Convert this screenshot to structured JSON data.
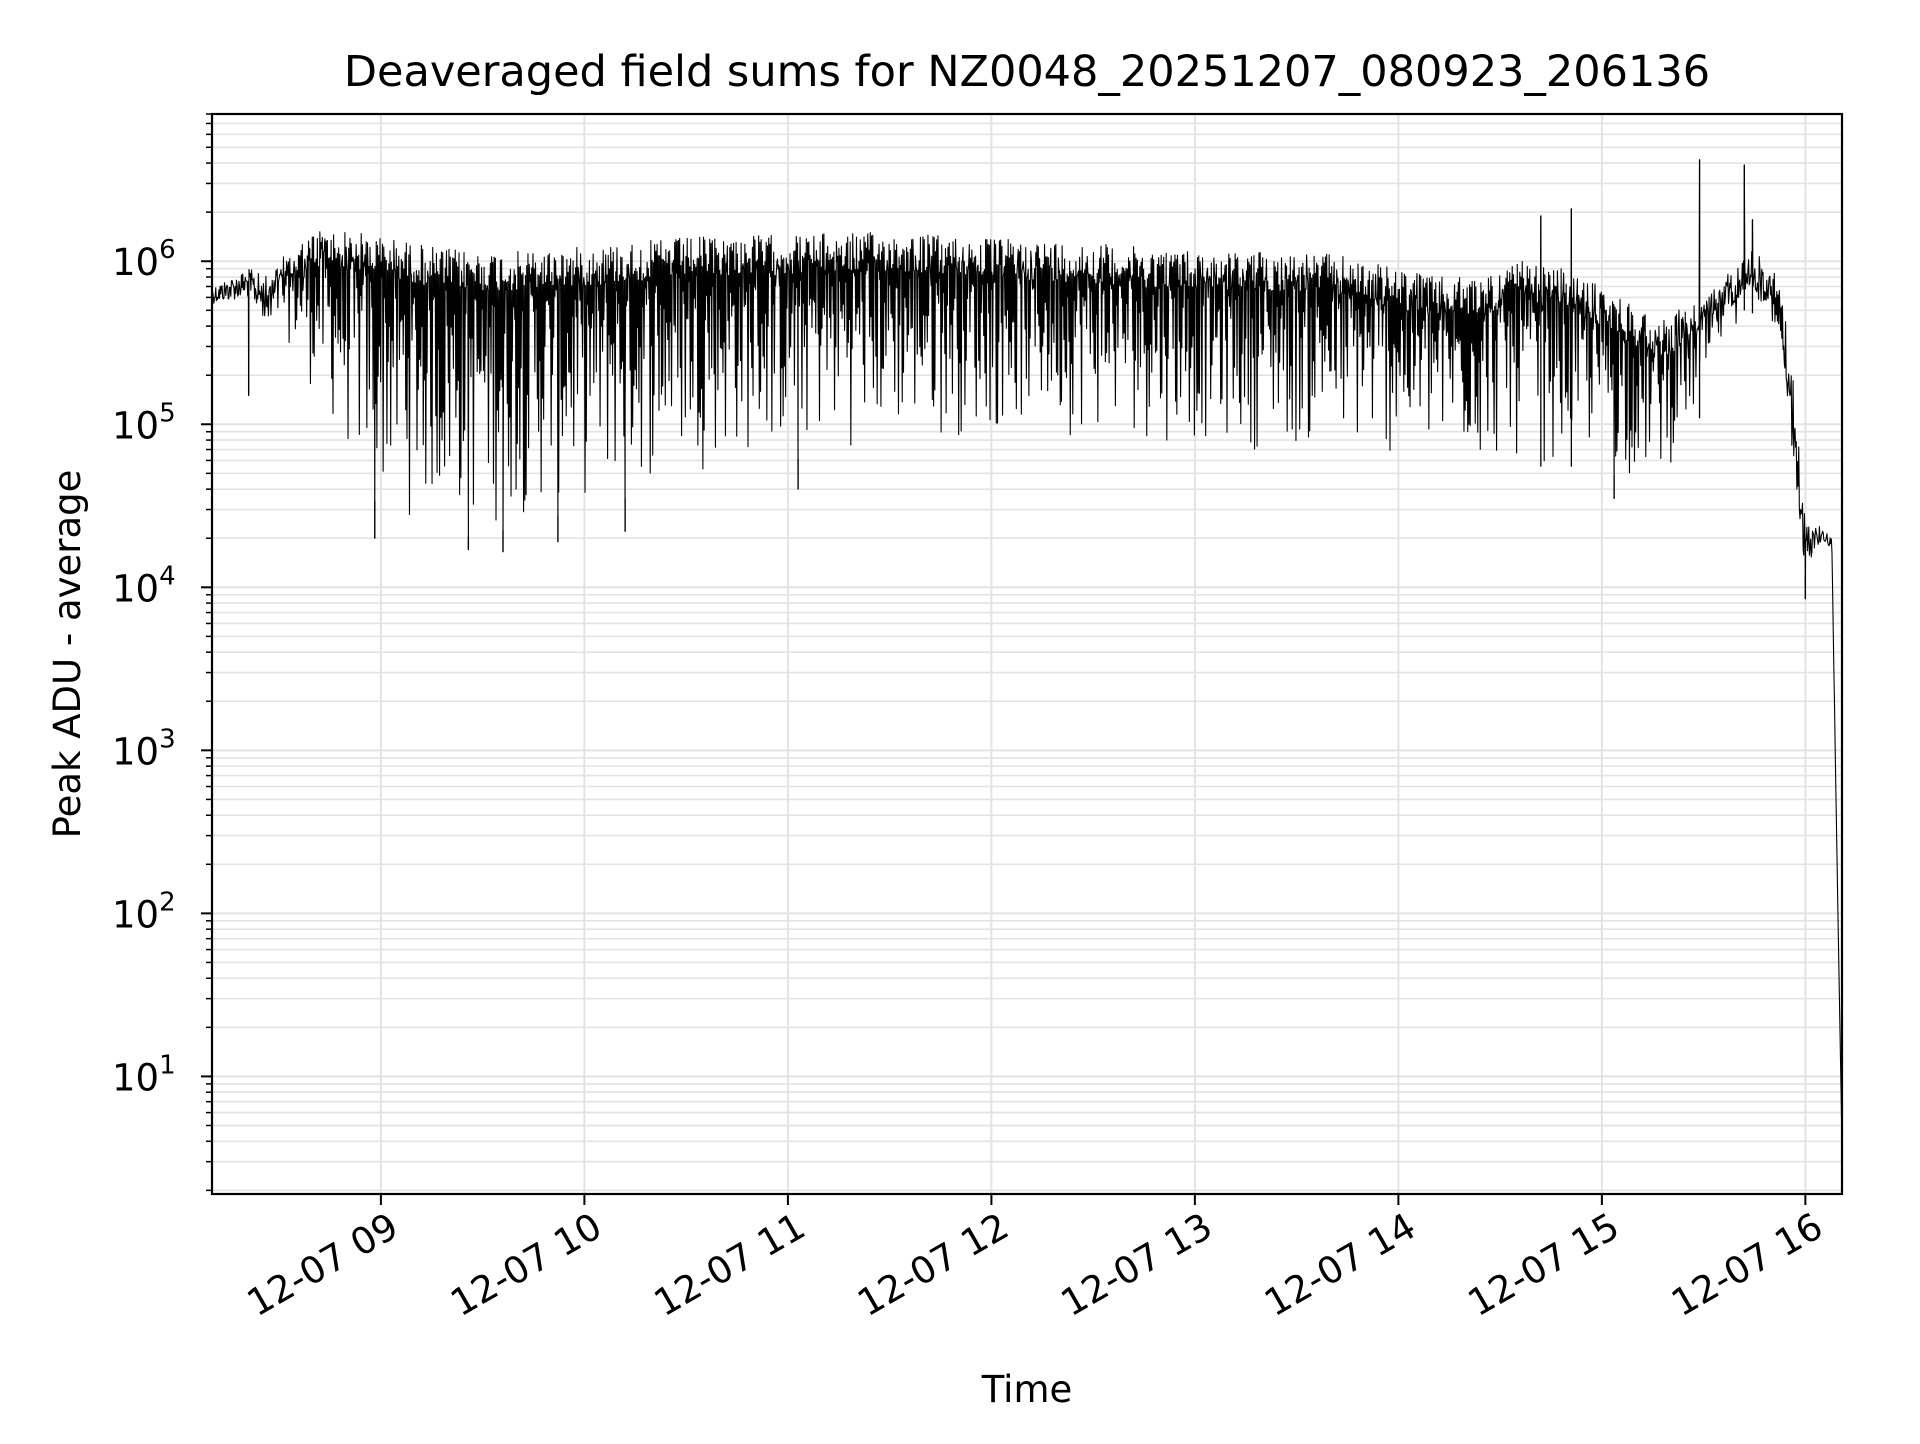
{
  "chart_data": {
    "type": "line",
    "title": "Deaveraged field sums for NZ0048_20251207_080923_206136",
    "xlabel": "Time",
    "ylabel": "Peak ADU - average",
    "yscale": "log",
    "ylim": [
      1.9,
      8000000
    ],
    "xlim_hours": [
      8.17,
      16.18
    ],
    "grid": true,
    "line_color": "#000000",
    "grid_color": "#e3e3e3",
    "x_ticks": [
      {
        "hour": 9,
        "label": "12-07 09"
      },
      {
        "hour": 10,
        "label": "12-07 10"
      },
      {
        "hour": 11,
        "label": "12-07 11"
      },
      {
        "hour": 12,
        "label": "12-07 12"
      },
      {
        "hour": 13,
        "label": "12-07 13"
      },
      {
        "hour": 14,
        "label": "12-07 14"
      },
      {
        "hour": 15,
        "label": "12-07 15"
      },
      {
        "hour": 16,
        "label": "12-07 16"
      }
    ],
    "y_ticks": [
      {
        "value": 10,
        "base": "10",
        "exp": "1"
      },
      {
        "value": 100,
        "base": "10",
        "exp": "2"
      },
      {
        "value": 1000,
        "base": "10",
        "exp": "3"
      },
      {
        "value": 10000,
        "base": "10",
        "exp": "4"
      },
      {
        "value": 100000,
        "base": "10",
        "exp": "5"
      },
      {
        "value": 1000000,
        "base": "10",
        "exp": "6"
      }
    ],
    "envelope_hours": [
      8.17,
      8.35,
      8.45,
      8.55,
      8.7,
      8.9,
      9.1,
      9.3,
      9.5,
      9.7,
      9.9,
      10.2,
      10.5,
      10.8,
      11.0,
      11.3,
      11.6,
      11.9,
      12.2,
      12.5,
      12.8,
      13.1,
      13.4,
      13.7,
      14.0,
      14.2,
      14.4,
      14.6,
      14.8,
      15.0,
      15.1,
      15.2,
      15.3,
      15.5,
      15.6,
      15.7,
      15.8,
      15.85,
      15.9,
      15.95,
      16.0,
      16.05,
      16.1,
      16.13,
      16.16,
      16.18
    ],
    "envelope_upper": [
      700000,
      900000,
      800000,
      1200000,
      1600000,
      1500000,
      1350000,
      1200000,
      1150000,
      1150000,
      1200000,
      1300000,
      1400000,
      1450000,
      1450000,
      1500000,
      1500000,
      1400000,
      1350000,
      1300000,
      1200000,
      1150000,
      1150000,
      1100000,
      900000,
      800000,
      800000,
      1000000,
      900000,
      700000,
      600000,
      500000,
      450000,
      600000,
      800000,
      1200000,
      1100000,
      900000,
      500000,
      150000,
      25000,
      25000,
      22000,
      20000,
      100,
      3.8
    ],
    "envelope_lower": [
      550000,
      600000,
      400000,
      300000,
      120000,
      40000,
      25000,
      22000,
      20000,
      25000,
      28000,
      35000,
      50000,
      55000,
      60000,
      70000,
      75000,
      80000,
      85000,
      80000,
      75000,
      70000,
      65000,
      60000,
      55000,
      50000,
      50000,
      55000,
      55000,
      55000,
      45000,
      40000,
      45000,
      120000,
      300000,
      500000,
      450000,
      350000,
      200000,
      40000,
      12000,
      18000,
      19000,
      17000,
      100,
      3.8
    ],
    "spikes": [
      {
        "hour": 8.35,
        "value": 150000
      },
      {
        "hour": 8.97,
        "value": 20000
      },
      {
        "hour": 9.43,
        "value": 17000
      },
      {
        "hour": 9.6,
        "value": 16500
      },
      {
        "hour": 9.87,
        "value": 19000
      },
      {
        "hour": 10.2,
        "value": 22000
      },
      {
        "hour": 11.05,
        "value": 40000
      },
      {
        "hour": 14.7,
        "value": 1900000
      },
      {
        "hour": 14.85,
        "value": 2100000
      },
      {
        "hour": 15.06,
        "value": 35000
      },
      {
        "hour": 15.48,
        "value": 4200000
      },
      {
        "hour": 15.7,
        "value": 3900000
      },
      {
        "hour": 15.74,
        "value": 1800000
      },
      {
        "hour": 16.0,
        "value": 8500
      }
    ]
  }
}
